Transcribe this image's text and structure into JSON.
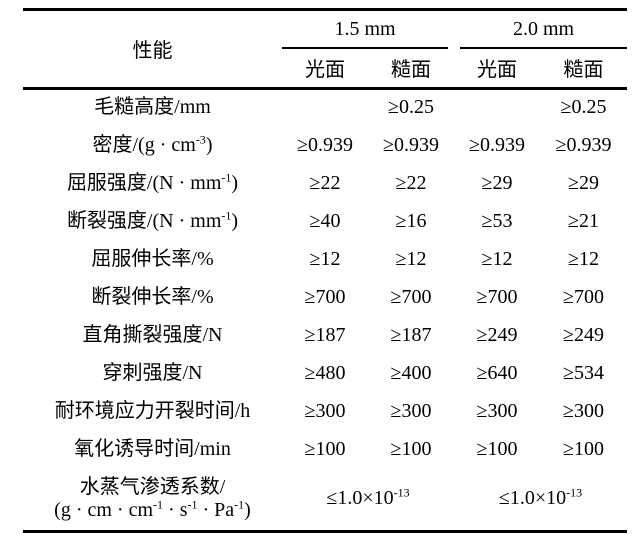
{
  "palette": {
    "background": "#ffffff",
    "text": "#000000",
    "rule": "#000000"
  },
  "table": {
    "header": {
      "property_label": "性能",
      "groups": [
        {
          "label": "1.5 mm",
          "subcolumns": [
            "光面",
            "糙面"
          ]
        },
        {
          "label": "2.0 mm",
          "subcolumns": [
            "光面",
            "糙面"
          ]
        }
      ]
    },
    "rows": [
      {
        "property": [
          "毛糙高度/mm"
        ],
        "values": [
          "",
          "≥0.25",
          "",
          "≥0.25"
        ]
      },
      {
        "property": [
          "密度/(g · cm",
          {
            "sup": "-3"
          },
          ")"
        ],
        "values": [
          "≥0.939",
          "≥0.939",
          "≥0.939",
          "≥0.939"
        ]
      },
      {
        "property": [
          "屈服强度/(N · mm",
          {
            "sup": "-1"
          },
          ")"
        ],
        "values": [
          "≥22",
          "≥22",
          "≥29",
          "≥29"
        ]
      },
      {
        "property": [
          "断裂强度/(N · mm",
          {
            "sup": "-1"
          },
          ")"
        ],
        "values": [
          "≥40",
          "≥16",
          "≥53",
          "≥21"
        ]
      },
      {
        "property": [
          "屈服伸长率/%"
        ],
        "values": [
          "≥12",
          "≥12",
          "≥12",
          "≥12"
        ]
      },
      {
        "property": [
          "断裂伸长率/%"
        ],
        "values": [
          "≥700",
          "≥700",
          "≥700",
          "≥700"
        ]
      },
      {
        "property": [
          "直角撕裂强度/N"
        ],
        "values": [
          "≥187",
          "≥187",
          "≥249",
          "≥249"
        ]
      },
      {
        "property": [
          "穿刺强度/N"
        ],
        "values": [
          "≥480",
          "≥400",
          "≥640",
          "≥534"
        ]
      },
      {
        "property": [
          "耐环境应力开裂时间/h"
        ],
        "values": [
          "≥300",
          "≥300",
          "≥300",
          "≥300"
        ]
      },
      {
        "property": [
          "氧化诱导时间/min"
        ],
        "values": [
          "≥100",
          "≥100",
          "≥100",
          "≥100"
        ]
      },
      {
        "property": [
          "水蒸气渗透系数/",
          {
            "br": true
          },
          "(g · cm · cm",
          {
            "sup": "-1"
          },
          " · s",
          {
            "sup": "-1"
          },
          " · Pa",
          {
            "sup": "-1"
          },
          ")"
        ],
        "merged_values": [
          [
            "≤1.0×10",
            {
              "sup": "-13"
            }
          ],
          [
            "≤1.0×10",
            {
              "sup": "-13"
            }
          ]
        ]
      }
    ]
  }
}
